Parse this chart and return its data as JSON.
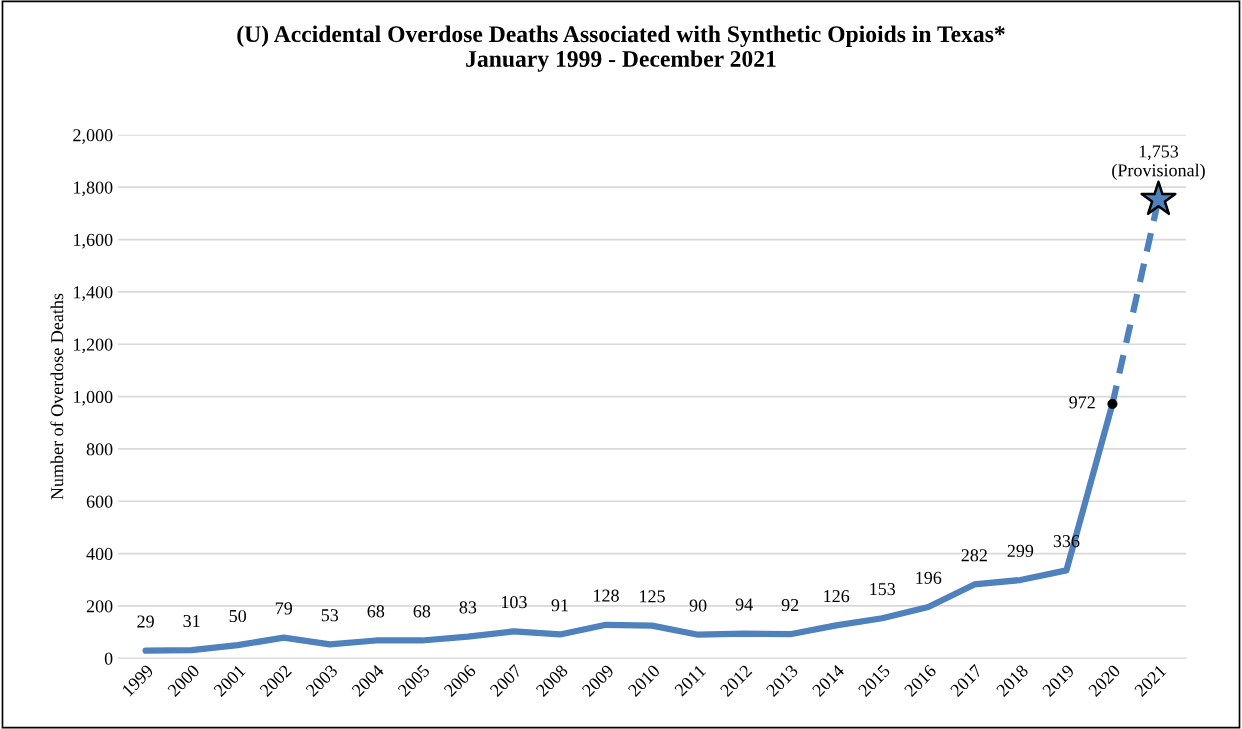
{
  "chart_data": {
    "type": "line",
    "title": "(U) Accidental Overdose Deaths Associated with Synthetic Opioids in Texas*\nJanuary 1999 - December 2021",
    "ylabel": "Number of Overdose Deaths",
    "categories": [
      "1999",
      "2000",
      "2001",
      "2002",
      "2003",
      "2004",
      "2005",
      "2006",
      "2007",
      "2008",
      "2009",
      "2010",
      "2011",
      "2012",
      "2013",
      "2014",
      "2015",
      "2016",
      "2017",
      "2018",
      "2019",
      "2020",
      "2021"
    ],
    "series": [
      {
        "color": "#4f81bd",
        "line_style": "solid",
        "marker": "none",
        "values": [
          29,
          31,
          50,
          79,
          53,
          68,
          68,
          83,
          103,
          91,
          128,
          125,
          90,
          94,
          92,
          126,
          153,
          196,
          282,
          299,
          336,
          972,
          null
        ],
        "value_labels": [
          "29",
          "31",
          "50",
          "79",
          "53",
          "68",
          "68",
          "83",
          "103",
          "91",
          "128",
          "125",
          "90",
          "94",
          "92",
          "126",
          "153",
          "196",
          "282",
          "299",
          "336",
          "972",
          null
        ]
      },
      {
        "color": "#4f81bd",
        "line_style": "dashed",
        "marker": "none",
        "values": [
          null,
          null,
          null,
          null,
          null,
          null,
          null,
          null,
          null,
          null,
          null,
          null,
          null,
          null,
          null,
          null,
          null,
          null,
          null,
          null,
          null,
          972,
          1753
        ]
      },
      {
        "type": "scatter",
        "color": "#4f81bd",
        "marker": "star",
        "values": [
          null,
          null,
          null,
          null,
          null,
          null,
          null,
          null,
          null,
          null,
          null,
          null,
          null,
          null,
          null,
          null,
          null,
          null,
          null,
          null,
          null,
          null,
          1753
        ],
        "value_labels": [
          null,
          null,
          null,
          null,
          null,
          null,
          null,
          null,
          null,
          null,
          null,
          null,
          null,
          null,
          null,
          null,
          null,
          null,
          null,
          null,
          null,
          null,
          "1,753\n(Provisional)"
        ]
      },
      {
        "type": "scatter",
        "color": "#000000",
        "marker": "circle",
        "values": [
          null,
          null,
          null,
          null,
          null,
          null,
          null,
          null,
          null,
          null,
          null,
          null,
          null,
          null,
          null,
          null,
          null,
          null,
          null,
          null,
          null,
          972,
          null
        ]
      }
    ],
    "ylim": [
      0,
      2000
    ],
    "yticks": [
      0,
      200,
      400,
      600,
      800,
      {
        "value": 1000,
        "label": "1,000"
      },
      {
        "value": 1200,
        "label": "1,200"
      },
      {
        "value": 1400,
        "label": "1,400"
      },
      {
        "value": 1600,
        "label": "1,600"
      },
      {
        "value": 1800,
        "label": "1,800"
      },
      {
        "value": 2000,
        "label": "2,000"
      }
    ],
    "grid": "y",
    "legend": false
  }
}
